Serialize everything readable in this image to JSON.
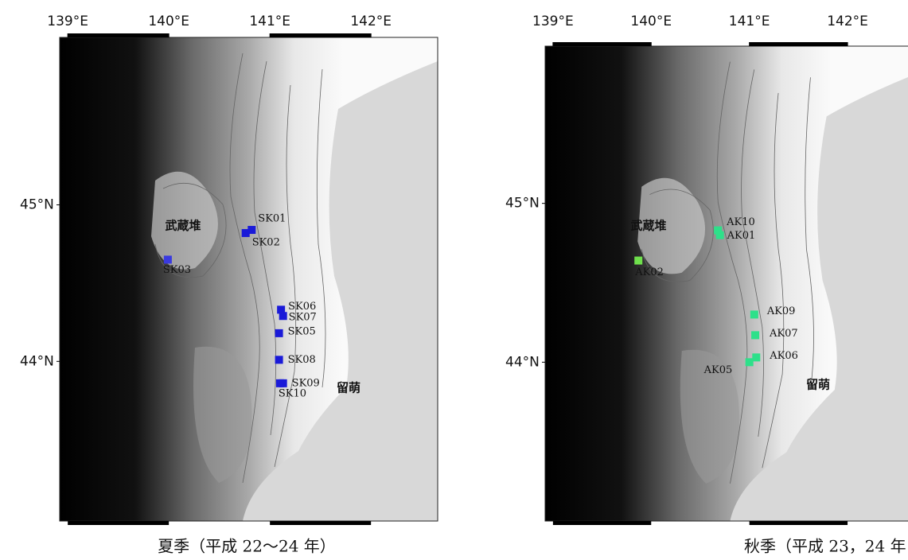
{
  "panels": [
    {
      "caption": "夏季（平成 22～24 年）",
      "xlim": [
        138.92,
        142.66
      ],
      "ylim": [
        42.98,
        46.07
      ],
      "xticks": [
        {
          "value": 139,
          "label": "139°E"
        },
        {
          "value": 140,
          "label": "140°E"
        },
        {
          "value": 141,
          "label": "141°E"
        },
        {
          "value": 142,
          "label": "142°E"
        }
      ],
      "yticks": [
        {
          "value": 45,
          "label": "45°N"
        },
        {
          "value": 44,
          "label": "44°N"
        }
      ],
      "places": [
        "武蔵堆",
        "留萌"
      ],
      "stations": [
        {
          "name": "SK01",
          "lon": 140.82,
          "lat": 44.84,
          "color": "#1a1ad8"
        },
        {
          "name": "SK02",
          "lon": 140.76,
          "lat": 44.82,
          "color": "#1a1ad8"
        },
        {
          "name": "SK03",
          "lon": 139.99,
          "lat": 44.65,
          "color": "#3a3ae0"
        },
        {
          "name": "SK06",
          "lon": 141.11,
          "lat": 44.33,
          "color": "#1a1ad8"
        },
        {
          "name": "SK07",
          "lon": 141.13,
          "lat": 44.29,
          "color": "#1a1ad8"
        },
        {
          "name": "SK05",
          "lon": 141.09,
          "lat": 44.18,
          "color": "#1a1ad8"
        },
        {
          "name": "SK08",
          "lon": 141.09,
          "lat": 44.01,
          "color": "#1a1ad8"
        },
        {
          "name": "SK09",
          "lon": 141.13,
          "lat": 43.86,
          "color": "#1a1ad8"
        },
        {
          "name": "SK10",
          "lon": 141.1,
          "lat": 43.86,
          "color": "#1a1ad8"
        }
      ]
    },
    {
      "caption": "秋季（平成 23，24 年",
      "xlim": [
        138.92,
        142.81
      ],
      "ylim": [
        43.0,
        45.99
      ],
      "xticks": [
        {
          "value": 139,
          "label": "139°E"
        },
        {
          "value": 140,
          "label": "140°E"
        },
        {
          "value": 141,
          "label": "141°E"
        },
        {
          "value": 142,
          "label": "142°E"
        }
      ],
      "yticks": [
        {
          "value": 45,
          "label": "45°N"
        },
        {
          "value": 44,
          "label": "44°N"
        }
      ],
      "places": [
        "武蔵堆",
        "留萌"
      ],
      "stations": [
        {
          "name": "AK10",
          "lon": 140.68,
          "lat": 44.83,
          "color": "#2ee08a"
        },
        {
          "name": "AK01",
          "lon": 140.7,
          "lat": 44.8,
          "color": "#2ee08a"
        },
        {
          "name": "AK02",
          "lon": 139.87,
          "lat": 44.64,
          "color": "#6fe04c"
        },
        {
          "name": "AK09",
          "lon": 141.05,
          "lat": 44.3,
          "color": "#2ee08a"
        },
        {
          "name": "AK07",
          "lon": 141.06,
          "lat": 44.17,
          "color": "#2ee08a"
        },
        {
          "name": "AK06",
          "lon": 141.07,
          "lat": 44.03,
          "color": "#2ee08a"
        },
        {
          "name": "AK05",
          "lon": 141.0,
          "lat": 44.0,
          "color": "#2ee08a"
        }
      ]
    }
  ]
}
